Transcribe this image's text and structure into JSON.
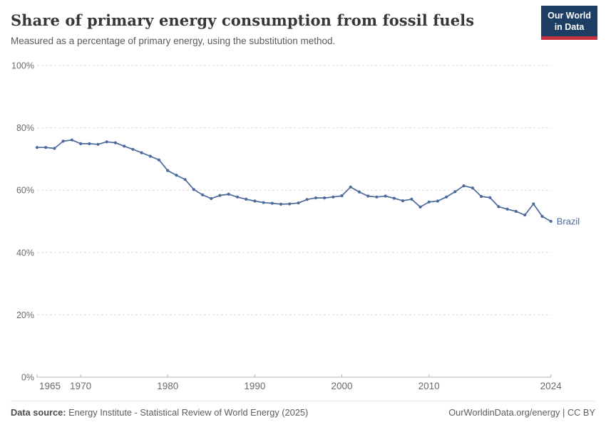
{
  "header": {
    "title": "Share of primary energy consumption from fossil fuels",
    "subtitle": "Measured as a percentage of primary energy, using the substitution method.",
    "logo": {
      "line1": "Our World",
      "line2": "in Data",
      "bg_color": "#1d3d63",
      "accent_color": "#c5313f"
    }
  },
  "chart_data": {
    "type": "line",
    "title": "Share of primary energy consumption from fossil fuels",
    "xlabel": "",
    "ylabel": "",
    "xlim": [
      1965,
      2024
    ],
    "ylim": [
      0,
      100
    ],
    "grid": "horizontal-dashed",
    "legend_position": "end-of-line-label",
    "x_ticks": [
      1965,
      1970,
      1980,
      1990,
      2000,
      2010,
      2024
    ],
    "y_ticks": [
      0,
      20,
      40,
      60,
      80,
      100
    ],
    "y_tick_suffix": "%",
    "series": [
      {
        "name": "Brazil",
        "color": "#4c6a9c",
        "x": [
          1965,
          1966,
          1967,
          1968,
          1969,
          1970,
          1971,
          1972,
          1973,
          1974,
          1975,
          1976,
          1977,
          1978,
          1979,
          1980,
          1981,
          1982,
          1983,
          1984,
          1985,
          1986,
          1987,
          1988,
          1989,
          1990,
          1991,
          1992,
          1993,
          1994,
          1995,
          1996,
          1997,
          1998,
          1999,
          2000,
          2001,
          2002,
          2003,
          2004,
          2005,
          2006,
          2007,
          2008,
          2009,
          2010,
          2011,
          2012,
          2013,
          2014,
          2015,
          2016,
          2017,
          2018,
          2019,
          2020,
          2021,
          2022,
          2023,
          2024
        ],
        "values": [
          73.7,
          73.7,
          73.4,
          75.7,
          76.1,
          74.9,
          74.9,
          74.7,
          75.5,
          75.2,
          74.1,
          73.1,
          72.0,
          70.9,
          69.7,
          66.3,
          64.8,
          63.4,
          60.2,
          58.5,
          57.3,
          58.3,
          58.7,
          57.8,
          57.1,
          56.5,
          56.0,
          55.8,
          55.5,
          55.6,
          55.9,
          57.0,
          57.5,
          57.5,
          57.8,
          58.2,
          61.0,
          59.4,
          58.1,
          57.8,
          58.1,
          57.4,
          56.6,
          57.1,
          54.6,
          56.2,
          56.5,
          57.8,
          59.5,
          61.4,
          60.7,
          58.0,
          57.6,
          54.7,
          53.9,
          53.2,
          52.0,
          55.6,
          51.6,
          50.0
        ]
      }
    ]
  },
  "footer": {
    "source_label": "Data source:",
    "source_text": " Energy Institute - Statistical Review of World Energy (2025)",
    "credit": "OurWorldinData.org/energy | CC BY"
  }
}
